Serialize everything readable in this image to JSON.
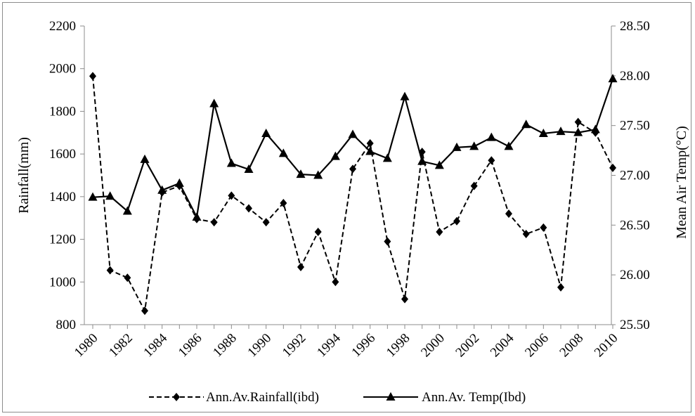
{
  "chart_data": {
    "type": "line",
    "x": [
      1980,
      1981,
      1982,
      1983,
      1984,
      1985,
      1986,
      1987,
      1988,
      1989,
      1990,
      1991,
      1992,
      1993,
      1994,
      1995,
      1996,
      1997,
      1998,
      1999,
      2000,
      2001,
      2002,
      2003,
      2004,
      2005,
      2006,
      2007,
      2008,
      2009,
      2010
    ],
    "x_tick_labels": [
      "1980",
      "1982",
      "1984",
      "1986",
      "1988",
      "1990",
      "1992",
      "1994",
      "1996",
      "1998",
      "2000",
      "2002",
      "2004",
      "2006",
      "2008",
      "2010"
    ],
    "xlim": [
      1980,
      2010
    ],
    "y_left": {
      "label": "Rainfall(mm)",
      "ylim": [
        800,
        2200
      ],
      "tick_labels": [
        "800",
        "1000",
        "1200",
        "1400",
        "1600",
        "1800",
        "2000",
        "2200"
      ]
    },
    "y_right": {
      "label": "Mean Air Temp(°C)",
      "ylim": [
        25.5,
        28.5
      ],
      "tick_labels": [
        "25.50",
        "26.00",
        "26.50",
        "27.00",
        "27.50",
        "28.00",
        "28.50"
      ]
    },
    "series": [
      {
        "name": "Ann.Av.Rainfall(ibd)",
        "axis": "left",
        "marker": "diamond",
        "line_style": "dashed",
        "color": "#000000",
        "values": [
          1965,
          1055,
          1020,
          865,
          1420,
          1450,
          1295,
          1280,
          1405,
          1345,
          1280,
          1370,
          1070,
          1235,
          1000,
          1530,
          1650,
          1190,
          920,
          1610,
          1235,
          1285,
          1450,
          1570,
          1320,
          1225,
          1255,
          975,
          1750,
          1700,
          1535
        ]
      },
      {
        "name": "Ann.Av. Temp(Ibd)",
        "axis": "right",
        "marker": "triangle",
        "line_style": "solid",
        "color": "#000000",
        "values": [
          26.78,
          26.79,
          26.64,
          27.16,
          26.85,
          26.92,
          26.58,
          27.72,
          27.12,
          27.06,
          27.42,
          27.22,
          27.01,
          27.0,
          27.19,
          27.41,
          27.24,
          27.17,
          27.79,
          27.14,
          27.1,
          27.28,
          27.29,
          27.38,
          27.29,
          27.51,
          27.42,
          27.44,
          27.43,
          27.46,
          27.97
        ]
      }
    ],
    "legend_position": "bottom",
    "grid": false
  }
}
